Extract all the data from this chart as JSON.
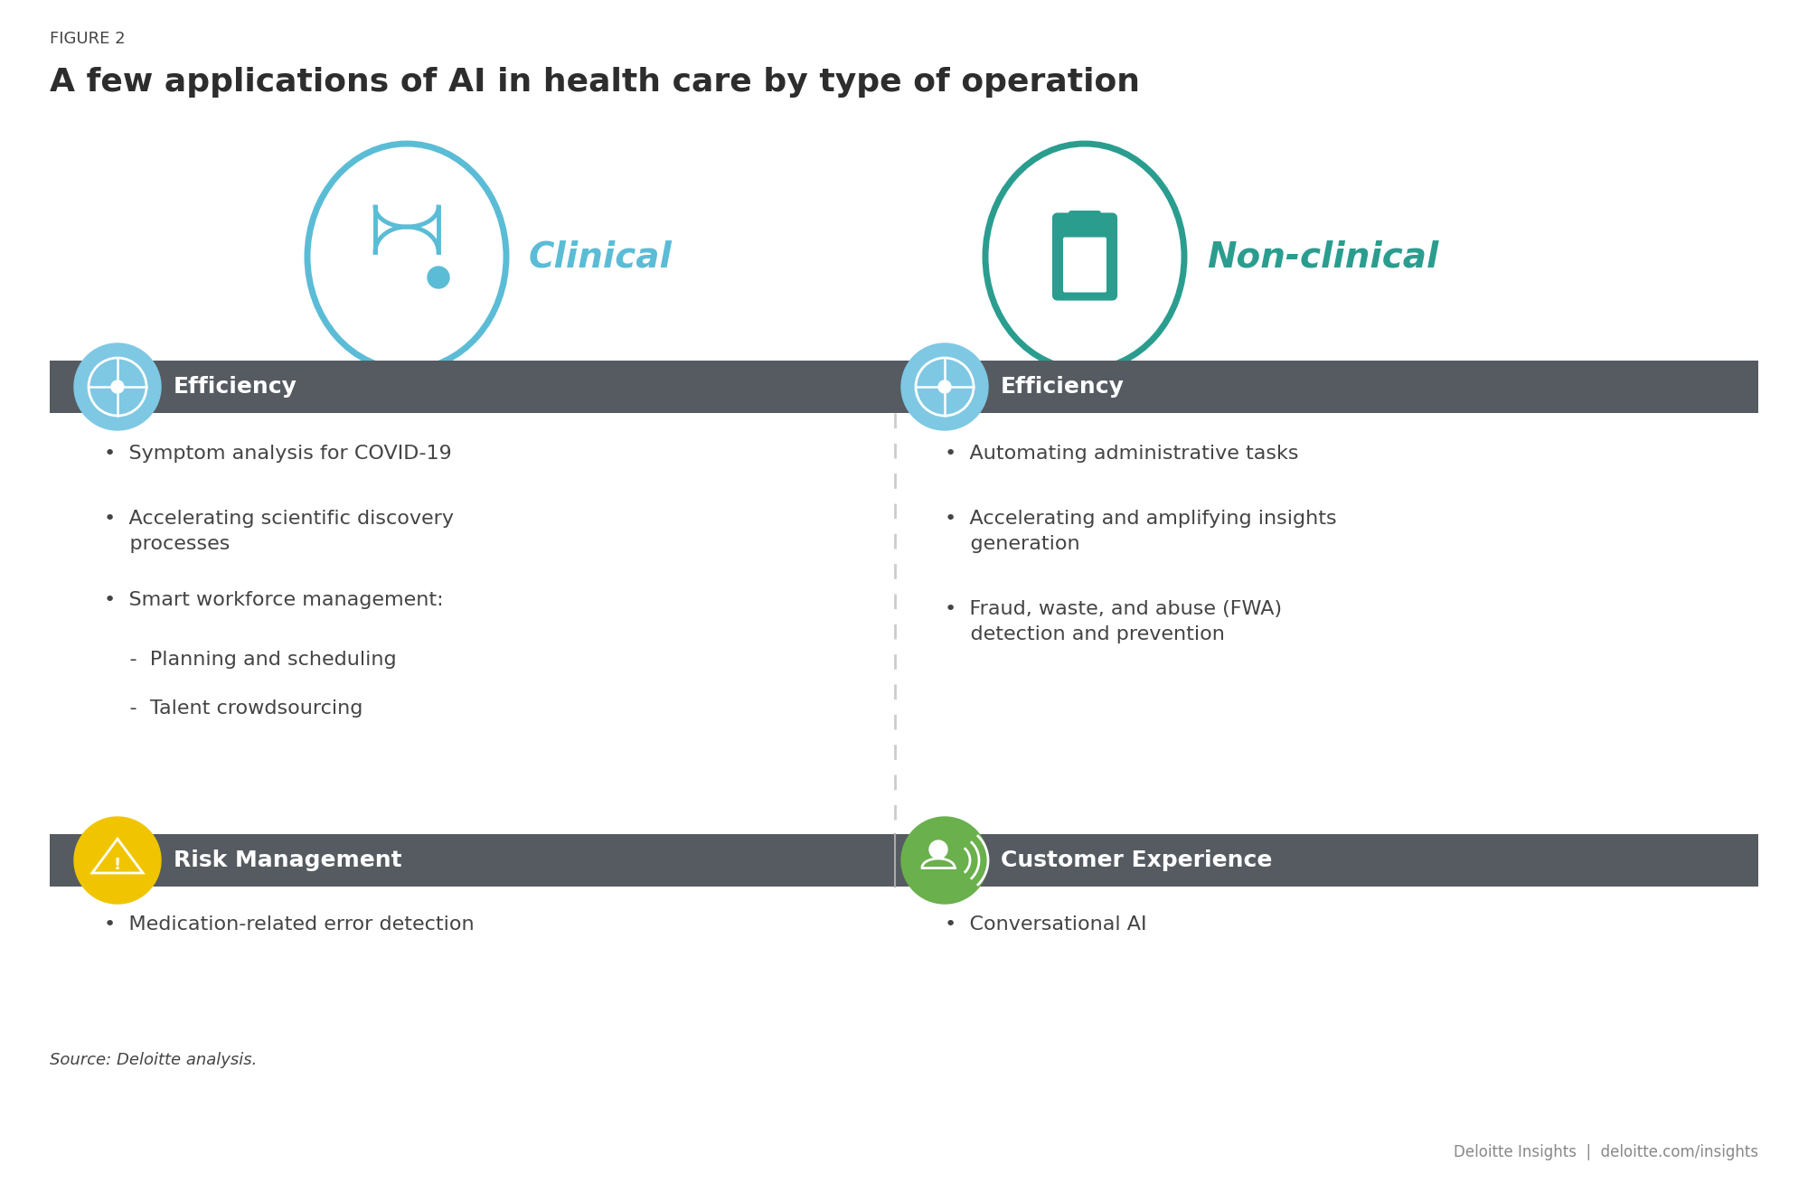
{
  "figure_label": "FIGURE 2",
  "title": "A few applications of AI in health care by type of operation",
  "bg_color": "#ffffff",
  "clinical_color": "#5bbcd6",
  "nonclinical_color": "#2a9d8f",
  "header_bar_color": "#555b61",
  "efficiency_icon_color": "#7ec8e3",
  "risk_icon_color": "#f0c500",
  "customer_icon_color": "#6ab04c",
  "clinical_label": "Clinical",
  "nonclinical_label": "Non-clinical",
  "left_header": "Efficiency",
  "right_header_top": "Efficiency",
  "left_header_bottom": "Risk Management",
  "right_header_bottom": "Customer Experience",
  "left_items": [
    "•  Symptom analysis for COVID-19",
    "•  Accelerating scientific discovery\n    processes",
    "•  Smart workforce management:\n    -  Planning and scheduling\n    -  Talent crowdsourcing"
  ],
  "right_items": [
    "•  Automating administrative tasks",
    "•  Accelerating and amplifying insights\n    generation",
    "•  Fraud, waste, and abuse (FWA)\n    detection and prevention"
  ],
  "left_bottom_items": [
    "•  Medication-related error detection"
  ],
  "right_bottom_items": [
    "•  Conversational AI"
  ],
  "source_text": "Source: Deloitte analysis.",
  "footer_text": "Deloitte Insights  |  deloitte.com/insights",
  "text_color": "#444444",
  "header_text_color": "#ffffff",
  "divider_color": "#cccccc"
}
